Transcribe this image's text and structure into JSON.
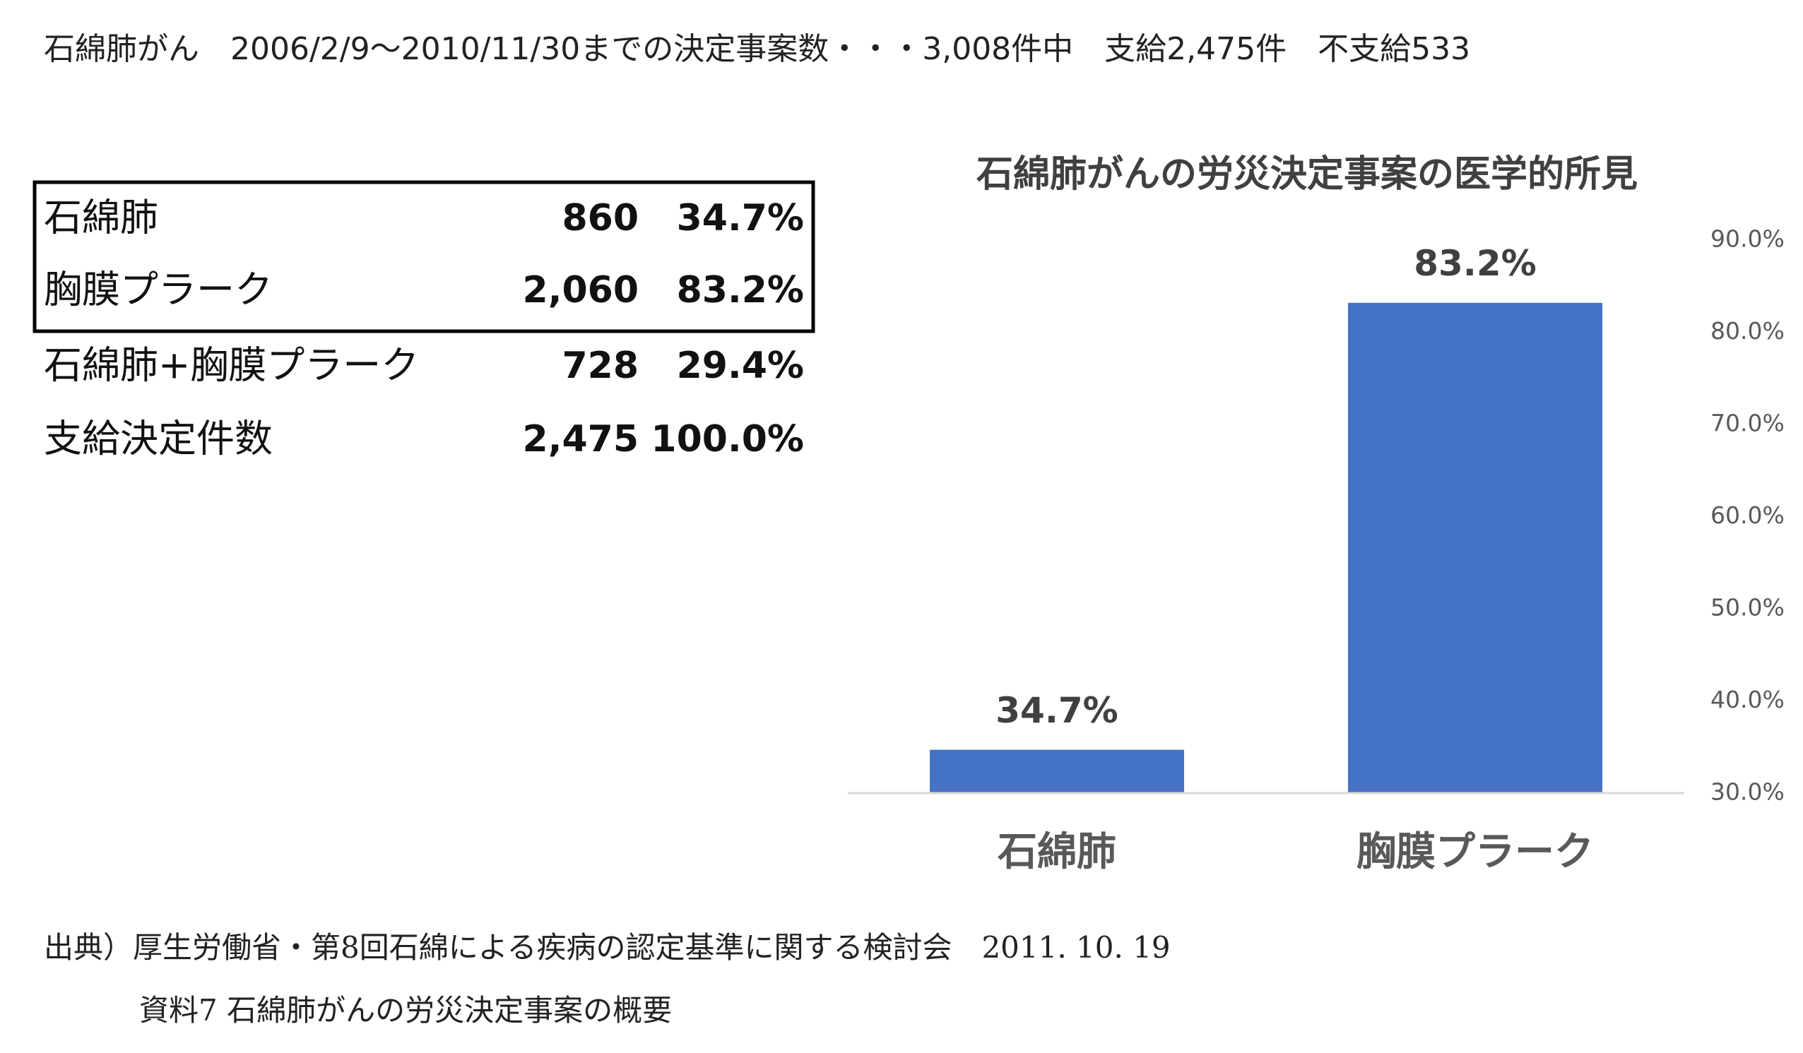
{
  "header": {
    "title": "石綿肺がん　2006/2/9～2010/11/30までの決定事案数・・・3,008件中　支給2,475件　不支給533"
  },
  "table": {
    "rows": [
      [
        "石綿肺",
        "860",
        "34.7%"
      ],
      [
        "胸膜プラーク",
        "2,060",
        "83.2%"
      ],
      [
        "石綿肺+胸膜プラーク",
        "728",
        "29.4%"
      ],
      [
        "支給決定件数",
        "2,475",
        "100.0%"
      ]
    ]
  },
  "chart_data": {
    "type": "bar",
    "title": "石綿肺がんの労災決定事案の医学的所見",
    "categories": [
      "石綿肺",
      "胸膜プラーク"
    ],
    "values": [
      34.7,
      83.2
    ],
    "value_labels": [
      "34.7%",
      "83.2%"
    ],
    "color": "#4472c4",
    "ylim": [
      30,
      90
    ],
    "yticks": [
      {
        "value": 30,
        "label": "30.0%"
      },
      {
        "value": 40,
        "label": "40.0%"
      },
      {
        "value": 50,
        "label": "50.0%"
      },
      {
        "value": 60,
        "label": "60.0%"
      },
      {
        "value": 70,
        "label": "70.0%"
      },
      {
        "value": 80,
        "label": "80.0%"
      },
      {
        "value": 90,
        "label": "90.0%"
      }
    ],
    "y_axis_side": "right"
  },
  "source": {
    "lines": [
      "出典）厚生労働省・第8回石綿による疾病の認定基準に関する検討会　2011. 10. 19",
      "資料7 石綿肺がんの労災決定事案の概要"
    ]
  }
}
